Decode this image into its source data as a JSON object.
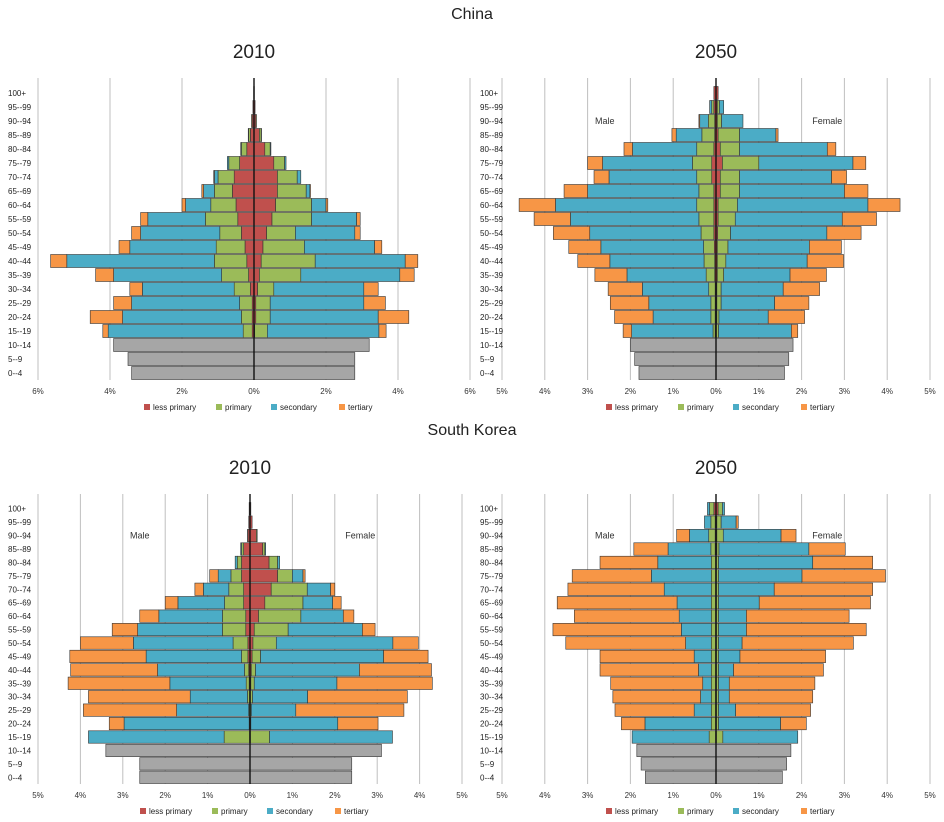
{
  "countries": [
    "China",
    "South Korea"
  ],
  "legend": [
    "less primary",
    "primary",
    "secondary",
    "tertiary"
  ],
  "colors": {
    "less primary": "#c0504d",
    "primary": "#9bbb59",
    "secondary": "#4bacc6",
    "tertiary": "#f79646",
    "under15": "#a6a6a6",
    "grid": "#bfbfbf"
  },
  "chart_data": [
    {
      "type": "bar",
      "country": "China",
      "title": "2010",
      "orientation": "horizontal population pyramid",
      "xlim": [
        -6,
        6
      ],
      "xticks": [
        "6%",
        "4%",
        "2%",
        "0%",
        "2%",
        "4%",
        "6%"
      ],
      "male_label": "",
      "female_label": "",
      "categories": [
        "0--4",
        "5--9",
        "10--14",
        "15--19",
        "20--24",
        "25--29",
        "30--34",
        "35--39",
        "40--44",
        "45--49",
        "50--54",
        "55--59",
        "60--64",
        "65--69",
        "70--74",
        "75--79",
        "80--84",
        "85--89",
        "90--94",
        "95--99",
        "100+"
      ],
      "under15_male": [
        3.4,
        3.5,
        3.9
      ],
      "under15_female": [
        2.8,
        2.8,
        3.2
      ],
      "male": {
        "less primary": [
          0,
          0,
          0,
          0.05,
          0.05,
          0.05,
          0.1,
          0.15,
          0.2,
          0.25,
          0.35,
          0.45,
          0.5,
          0.6,
          0.55,
          0.4,
          0.2,
          0.1,
          0.05,
          0.03,
          0.01
        ],
        "primary": [
          0,
          0,
          0,
          0.25,
          0.3,
          0.35,
          0.45,
          0.75,
          0.9,
          0.8,
          0.6,
          0.9,
          0.7,
          0.5,
          0.45,
          0.3,
          0.15,
          0.05,
          0.02,
          0,
          0
        ],
        "secondary": [
          0,
          0,
          0,
          3.75,
          3.3,
          3.0,
          2.55,
          3.0,
          4.1,
          2.4,
          2.2,
          1.6,
          0.7,
          0.3,
          0.1,
          0.04,
          0.02,
          0.01,
          0,
          0,
          0
        ],
        "tertiary": [
          0,
          0,
          0,
          0.15,
          0.9,
          0.5,
          0.35,
          0.5,
          0.45,
          0.3,
          0.25,
          0.2,
          0.1,
          0.05,
          0.02,
          0,
          0,
          0,
          0,
          0,
          0
        ]
      },
      "female": {
        "less primary": [
          0,
          0,
          0,
          0.02,
          0.05,
          0.05,
          0.1,
          0.15,
          0.2,
          0.25,
          0.35,
          0.5,
          0.6,
          0.65,
          0.65,
          0.55,
          0.3,
          0.15,
          0.05,
          0.03,
          0.01
        ],
        "primary": [
          0,
          0,
          0,
          0.35,
          0.4,
          0.4,
          0.45,
          1.15,
          1.5,
          1.15,
          0.8,
          1.1,
          1.0,
          0.8,
          0.55,
          0.3,
          0.15,
          0.05,
          0.02,
          0,
          0
        ],
        "secondary": [
          0,
          0,
          0,
          3.1,
          3.0,
          2.6,
          2.5,
          2.75,
          2.5,
          1.95,
          1.65,
          1.25,
          0.4,
          0.1,
          0.1,
          0.04,
          0.02,
          0.01,
          0,
          0,
          0
        ],
        "tertiary": [
          0,
          0,
          0,
          0.2,
          0.85,
          0.6,
          0.4,
          0.4,
          0.35,
          0.2,
          0.15,
          0.1,
          0.05,
          0.02,
          0,
          0,
          0,
          0,
          0,
          0,
          0
        ]
      }
    },
    {
      "type": "bar",
      "country": "China",
      "title": "2050",
      "orientation": "horizontal population pyramid",
      "xlim": [
        -5,
        5
      ],
      "xticks": [
        "5%",
        "4%",
        "3%",
        "2%",
        "1%",
        "0%",
        "1%",
        "2%",
        "3%",
        "4%",
        "5%"
      ],
      "male_label": "Male",
      "female_label": "Female",
      "categories": [
        "0--4",
        "5--9",
        "10--14",
        "15--19",
        "20--24",
        "25--29",
        "30--34",
        "35--39",
        "40--44",
        "45--49",
        "50--54",
        "55--59",
        "60--64",
        "65--69",
        "70--74",
        "75--79",
        "80--84",
        "85--89",
        "90--94",
        "95--99",
        "100+"
      ],
      "under15_male": [
        1.8,
        1.9,
        2.0
      ],
      "under15_female": [
        1.6,
        1.7,
        1.8
      ],
      "male": {
        "less primary": [
          0,
          0,
          0,
          0.02,
          0.02,
          0.02,
          0.02,
          0.03,
          0.03,
          0.04,
          0.05,
          0.05,
          0.05,
          0.05,
          0.1,
          0.1,
          0.05,
          0.03,
          0.03,
          0.05,
          0.05
        ],
        "primary": [
          0,
          0,
          0,
          0.05,
          0.1,
          0.1,
          0.15,
          0.2,
          0.25,
          0.25,
          0.3,
          0.35,
          0.4,
          0.35,
          0.35,
          0.45,
          0.4,
          0.3,
          0.15,
          0.05,
          0
        ],
        "secondary": [
          0,
          0,
          0,
          1.9,
          1.35,
          1.45,
          1.55,
          1.85,
          2.2,
          2.4,
          2.6,
          3.0,
          3.3,
          2.6,
          2.05,
          2.1,
          1.5,
          0.6,
          0.2,
          0.05,
          0
        ],
        "tertiary": [
          0,
          0,
          0,
          0.2,
          0.9,
          0.9,
          0.8,
          0.75,
          0.75,
          0.75,
          0.85,
          0.85,
          0.85,
          0.55,
          0.35,
          0.35,
          0.2,
          0.1,
          0.02,
          0,
          0
        ]
      },
      "female": {
        "less primary": [
          0,
          0,
          0,
          0.01,
          0.02,
          0.02,
          0.02,
          0.03,
          0.03,
          0.03,
          0.04,
          0.05,
          0.05,
          0.1,
          0.1,
          0.15,
          0.1,
          0.05,
          0.03,
          0.03,
          0.05
        ],
        "primary": [
          0,
          0,
          0,
          0.05,
          0.05,
          0.1,
          0.1,
          0.15,
          0.2,
          0.25,
          0.3,
          0.4,
          0.45,
          0.45,
          0.45,
          0.85,
          0.45,
          0.5,
          0.1,
          0.05,
          0
        ],
        "secondary": [
          0,
          0,
          0,
          1.7,
          1.15,
          1.25,
          1.45,
          1.55,
          1.9,
          1.9,
          2.25,
          2.5,
          3.05,
          2.45,
          2.15,
          2.2,
          2.05,
          0.85,
          0.5,
          0.1,
          0
        ],
        "tertiary": [
          0,
          0,
          0,
          0.15,
          0.85,
          0.8,
          0.85,
          0.85,
          0.85,
          0.75,
          0.8,
          0.8,
          0.75,
          0.55,
          0.35,
          0.3,
          0.2,
          0.05,
          0,
          0,
          0
        ]
      }
    },
    {
      "type": "bar",
      "country": "South Korea",
      "title": "2010",
      "orientation": "horizontal population pyramid",
      "xlim": [
        -5,
        5
      ],
      "xticks": [
        "5%",
        "4%",
        "3%",
        "2%",
        "1%",
        "0%",
        "1%",
        "2%",
        "3%",
        "4%",
        "5%"
      ],
      "male_label": "Male",
      "female_label": "Female",
      "categories": [
        "0--4",
        "5--9",
        "10--14",
        "15--19",
        "20--24",
        "25--29",
        "30--34",
        "35--39",
        "40--44",
        "45--49",
        "50--54",
        "55--59",
        "60--64",
        "65--69",
        "70--74",
        "75--79",
        "80--84",
        "85--89",
        "90--94",
        "95--99",
        "100+"
      ],
      "under15_male": [
        2.6,
        2.6,
        3.4
      ],
      "under15_female": [
        2.4,
        2.4,
        3.1
      ],
      "male": {
        "less primary": [
          0,
          0,
          0,
          0.01,
          0.01,
          0.01,
          0.01,
          0.02,
          0.03,
          0.05,
          0.05,
          0.1,
          0.1,
          0.15,
          0.15,
          0.2,
          0.2,
          0.15,
          0.05,
          0.03,
          0.02
        ],
        "primary": [
          0,
          0,
          0,
          0.6,
          0.01,
          0.02,
          0.05,
          0.07,
          0.1,
          0.15,
          0.35,
          0.55,
          0.55,
          0.45,
          0.35,
          0.25,
          0.1,
          0.05,
          0.01,
          0,
          0
        ],
        "secondary": [
          0,
          0,
          0,
          3.2,
          2.95,
          1.7,
          1.35,
          1.8,
          2.05,
          2.25,
          2.35,
          2.0,
          1.5,
          1.1,
          0.6,
          0.3,
          0.05,
          0.02,
          0,
          0,
          0
        ],
        "tertiary": [
          0,
          0,
          0,
          0,
          0.35,
          2.2,
          2.4,
          2.4,
          2.05,
          1.8,
          1.25,
          0.6,
          0.45,
          0.3,
          0.2,
          0.2,
          0,
          0,
          0,
          0,
          0
        ]
      },
      "female": {
        "less primary": [
          0,
          0,
          0,
          0.01,
          0.01,
          0.01,
          0.01,
          0.02,
          0.03,
          0.05,
          0.07,
          0.1,
          0.2,
          0.35,
          0.5,
          0.65,
          0.45,
          0.3,
          0.15,
          0.05,
          0.02
        ],
        "primary": [
          0,
          0,
          0,
          0.45,
          0.01,
          0.02,
          0.05,
          0.08,
          0.1,
          0.2,
          0.55,
          0.8,
          1.0,
          0.9,
          0.85,
          0.35,
          0.2,
          0.05,
          0.02,
          0,
          0
        ],
        "secondary": [
          0,
          0,
          0,
          2.9,
          2.05,
          1.05,
          1.3,
          1.95,
          2.45,
          2.9,
          2.75,
          1.75,
          1.0,
          0.7,
          0.55,
          0.25,
          0.05,
          0.02,
          0,
          0,
          0
        ],
        "tertiary": [
          0,
          0,
          0,
          0,
          0.95,
          2.55,
          2.35,
          2.25,
          1.7,
          1.05,
          0.6,
          0.3,
          0.25,
          0.2,
          0.1,
          0.05,
          0,
          0,
          0,
          0,
          0
        ]
      }
    },
    {
      "type": "bar",
      "country": "South Korea",
      "title": "2050",
      "orientation": "horizontal population pyramid",
      "xlim": [
        -5,
        5
      ],
      "xticks": [
        "5%",
        "4%",
        "3%",
        "2%",
        "1%",
        "0%",
        "1%",
        "2%",
        "3%",
        "4%",
        "5%"
      ],
      "male_label": "Male",
      "female_label": "Female",
      "categories": [
        "0--4",
        "5--9",
        "10--14",
        "15--19",
        "20--24",
        "25--29",
        "30--34",
        "35--39",
        "40--44",
        "45--49",
        "50--54",
        "55--59",
        "60--64",
        "65--69",
        "70--74",
        "75--79",
        "80--84",
        "85--89",
        "90--94",
        "95--99",
        "100+"
      ],
      "under15_male": [
        1.65,
        1.75,
        1.85
      ],
      "under15_female": [
        1.55,
        1.65,
        1.75
      ],
      "male": {
        "less primary": [
          0,
          0,
          0,
          0.01,
          0.01,
          0.01,
          0.01,
          0.01,
          0.01,
          0.01,
          0.01,
          0.01,
          0.01,
          0.01,
          0.01,
          0.01,
          0.01,
          0.02,
          0.02,
          0.02,
          0.05
        ],
        "primary": [
          0,
          0,
          0,
          0.15,
          0.1,
          0.1,
          0.1,
          0.1,
          0.1,
          0.1,
          0.1,
          0.1,
          0.1,
          0.1,
          0.1,
          0.1,
          0.1,
          0.1,
          0.15,
          0.1,
          0.1
        ],
        "secondary": [
          0,
          0,
          0,
          1.8,
          1.55,
          0.4,
          0.25,
          0.2,
          0.3,
          0.4,
          0.6,
          0.7,
          0.75,
          0.8,
          1.1,
          1.4,
          1.25,
          1.0,
          0.45,
          0.15,
          0.05
        ],
        "tertiary": [
          0,
          0,
          0,
          0,
          0.55,
          1.85,
          2.05,
          2.15,
          2.3,
          2.2,
          2.8,
          3.0,
          2.45,
          2.8,
          2.25,
          1.85,
          1.35,
          0.8,
          0.3,
          0,
          0
        ]
      },
      "female": {
        "less primary": [
          0,
          0,
          0,
          0.01,
          0.01,
          0.01,
          0.01,
          0.01,
          0.01,
          0.01,
          0.01,
          0.01,
          0.01,
          0.01,
          0.01,
          0.01,
          0.01,
          0.02,
          0.02,
          0.02,
          0.05
        ],
        "primary": [
          0,
          0,
          0,
          0.15,
          0.05,
          0.05,
          0.05,
          0.05,
          0.05,
          0.05,
          0.05,
          0.05,
          0.05,
          0.05,
          0.05,
          0.05,
          0.05,
          0.05,
          0.15,
          0.1,
          0.1
        ],
        "secondary": [
          0,
          0,
          0,
          1.75,
          1.45,
          0.4,
          0.25,
          0.25,
          0.35,
          0.5,
          0.55,
          0.65,
          0.65,
          0.95,
          1.3,
          1.95,
          2.2,
          2.1,
          1.35,
          0.35,
          0.05
        ],
        "tertiary": [
          0,
          0,
          0,
          0,
          0.6,
          1.75,
          1.95,
          2.0,
          2.1,
          2.0,
          2.6,
          2.8,
          2.4,
          2.6,
          2.3,
          1.95,
          1.4,
          0.85,
          0.35,
          0.05,
          0
        ]
      }
    }
  ]
}
